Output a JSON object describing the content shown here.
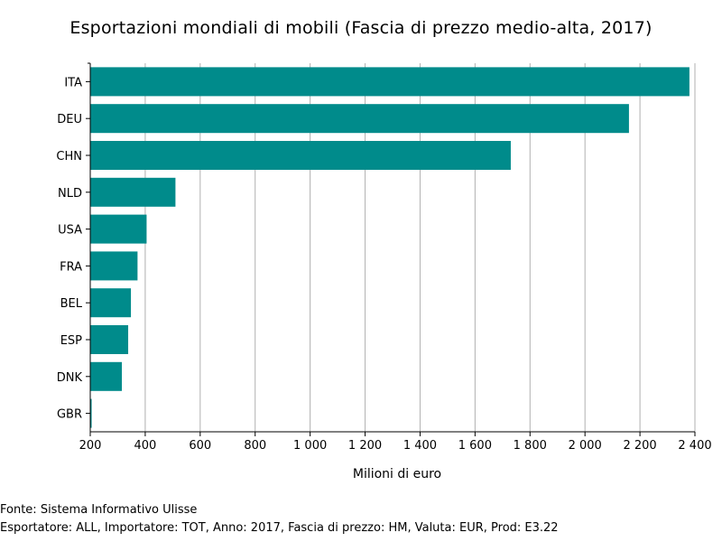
{
  "chart_data": {
    "type": "bar",
    "orientation": "horizontal",
    "title": "Esportazioni mondiali di mobili (Fascia di prezzo medio-alta, 2017)",
    "xlabel": "Milioni di euro",
    "ylabel": "",
    "categories": [
      "ITA",
      "DEU",
      "CHN",
      "NLD",
      "USA",
      "FRA",
      "BEL",
      "ESP",
      "DNK",
      "GBR"
    ],
    "values": [
      2380,
      2160,
      1730,
      510,
      405,
      372,
      348,
      338,
      315,
      205
    ],
    "xlim": [
      200,
      2400
    ],
    "xticks": [
      200,
      400,
      600,
      800,
      1000,
      1200,
      1400,
      1600,
      1800,
      2000,
      2200,
      2400
    ],
    "xtick_labels": [
      "200",
      "400",
      "600",
      "800",
      "1 000",
      "1 200",
      "1 400",
      "1 600",
      "1 800",
      "2 000",
      "2 200",
      "2 400"
    ],
    "grid": true,
    "bar_color": "#008b8b",
    "grid_color": "#b0b0b0"
  },
  "footer": {
    "source": "Fonte: Sistema Informativo Ulisse",
    "details": "Esportatore: ALL, Importatore: TOT, Anno: 2017, Fascia di prezzo: HM, Valuta: EUR, Prod: E3.22"
  }
}
